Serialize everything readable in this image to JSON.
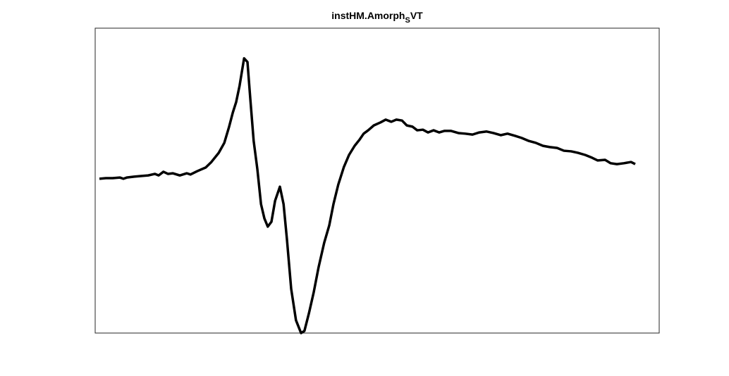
{
  "chart_data": {
    "type": "line",
    "title_parts": [
      "instHM.Amorph",
      "S",
      "VT"
    ],
    "xlim": [
      0,
      100
    ],
    "ylim": [
      0,
      100
    ],
    "x": [
      0.75,
      1.9,
      3.1,
      4.4,
      5.0,
      5.6,
      6.9,
      8.1,
      9.4,
      10.6,
      11.25,
      12.1,
      12.9,
      13.75,
      15,
      16.25,
      16.9,
      18.1,
      19.6,
      20.6,
      21.9,
      22.9,
      23.75,
      24.4,
      25,
      25.6,
      26.4,
      27,
      27.5,
      28.1,
      28.75,
      29.4,
      30,
      30.6,
      31.25,
      31.9,
      32.75,
      33.4,
      34,
      34.75,
      35.6,
      36.5,
      37.1,
      37.9,
      38.75,
      39.6,
      40.6,
      41.5,
      42.25,
      43.1,
      44.1,
      45,
      46,
      46.9,
      47.6,
      48.4,
      49.4,
      50.6,
      51.5,
      52.5,
      53.4,
      54.4,
      55.25,
      56.25,
      57.1,
      58.1,
      59,
      60,
      61,
      61.9,
      63.1,
      64.4,
      65.6,
      66.9,
      68.1,
      69.4,
      70.6,
      71.9,
      73.1,
      74.4,
      75.6,
      76.9,
      78.1,
      79.4,
      80.6,
      81.9,
      83.1,
      84.4,
      85.6,
      86.9,
      88.1,
      89.1,
      90.4,
      91.4,
      92.5,
      93.75,
      95,
      95.75
    ],
    "series": [
      {
        "color": "#000000",
        "values": [
          50.6,
          50.8,
          50.8,
          51.0,
          50.6,
          51.0,
          51.3,
          51.5,
          51.7,
          52.2,
          51.7,
          52.9,
          52.2,
          52.4,
          51.7,
          52.4,
          52.0,
          53.1,
          54.3,
          56.1,
          59.1,
          62.4,
          67.7,
          72.3,
          75.8,
          81.1,
          90.1,
          88.9,
          76.9,
          63.0,
          53.8,
          42.3,
          37.6,
          34.9,
          36.5,
          43.4,
          48.0,
          42.3,
          30.7,
          14.5,
          4.2,
          0,
          0.7,
          6.5,
          13.4,
          21.5,
          29.6,
          35.3,
          42.3,
          48.7,
          54.5,
          58.4,
          61.4,
          63.5,
          65.4,
          66.5,
          68.1,
          69.1,
          70.0,
          69.3,
          70.0,
          69.7,
          68.1,
          67.7,
          66.5,
          66.7,
          65.8,
          66.5,
          65.8,
          66.3,
          66.3,
          65.6,
          65.4,
          65.1,
          65.8,
          66.1,
          65.6,
          64.9,
          65.4,
          64.7,
          64.0,
          63.0,
          62.4,
          61.4,
          61.0,
          60.7,
          59.8,
          59.6,
          59.1,
          58.4,
          57.5,
          56.6,
          56.8,
          55.7,
          55.4,
          55.7,
          56.1,
          55.4
        ]
      }
    ]
  }
}
